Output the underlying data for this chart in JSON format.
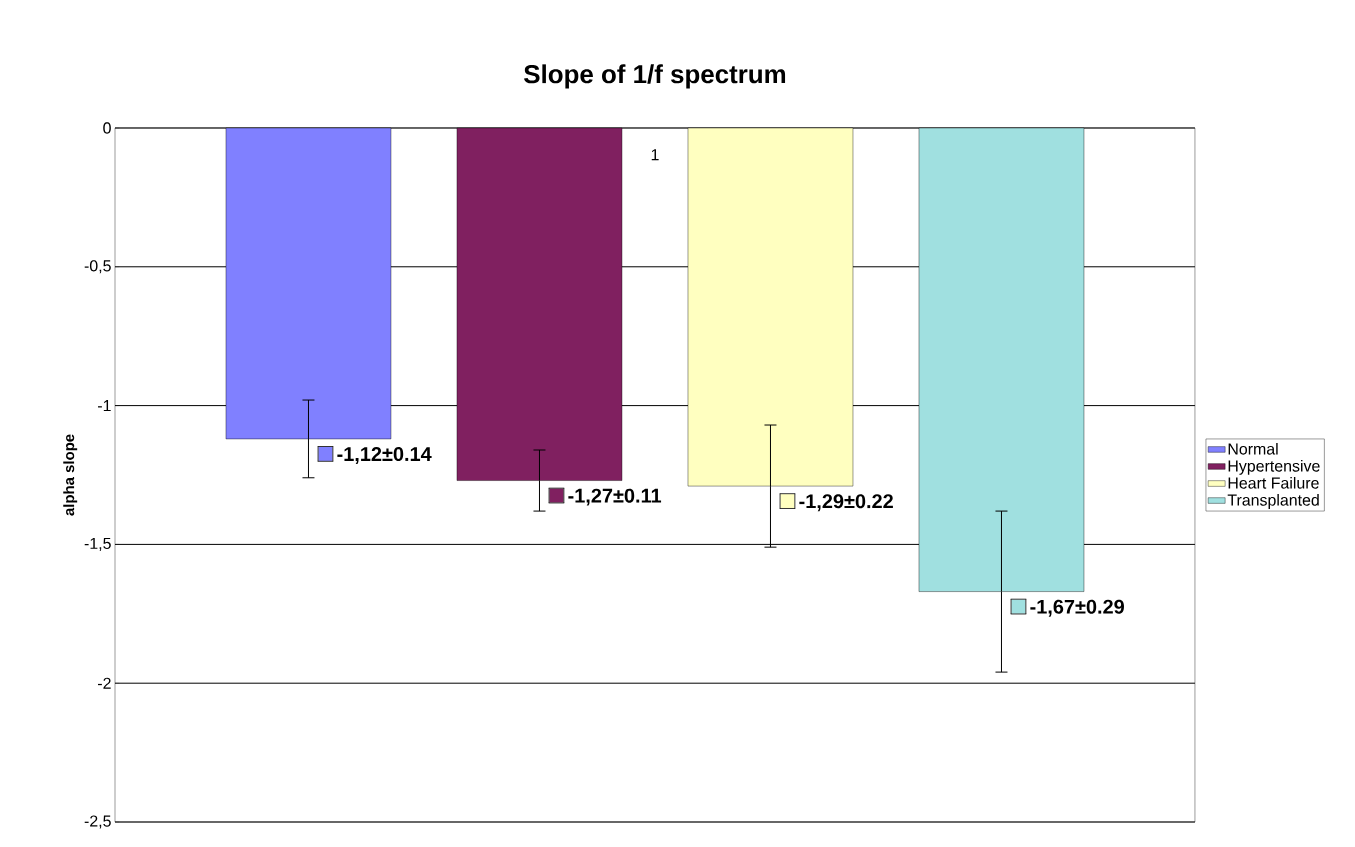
{
  "chart_data": {
    "type": "bar",
    "title": "Slope of 1/f spectrum",
    "ylabel": "alpha slope",
    "categories": [
      "1"
    ],
    "series": [
      {
        "name": "Normal",
        "color": "#8080ff",
        "values": [
          -1.12
        ],
        "errors": [
          0.14
        ],
        "value_labels": [
          "-1,12±0.14"
        ]
      },
      {
        "name": "Hypertensive",
        "color": "#802060",
        "values": [
          -1.27
        ],
        "errors": [
          0.11
        ],
        "value_labels": [
          "-1,27±0.11"
        ]
      },
      {
        "name": "Heart Failure",
        "color": "#ffffc0",
        "values": [
          -1.29
        ],
        "errors": [
          0.22
        ],
        "value_labels": [
          "-1,29±0.22"
        ]
      },
      {
        "name": "Transplanted",
        "color": "#a0e0e0",
        "values": [
          -1.67
        ],
        "errors": [
          0.29
        ],
        "value_labels": [
          "-1,67±0.29"
        ]
      }
    ],
    "ylim": [
      -2.5,
      0
    ],
    "yticks": [
      {
        "value": -2.5,
        "label": "-2,5"
      },
      {
        "value": -2,
        "label": "-2"
      },
      {
        "value": -1.5,
        "label": "-1,5"
      },
      {
        "value": -1,
        "label": "-1"
      },
      {
        "value": -0.5,
        "label": "-0,5"
      },
      {
        "value": 0,
        "label": "0"
      }
    ],
    "grid": "y",
    "legend": "right"
  }
}
